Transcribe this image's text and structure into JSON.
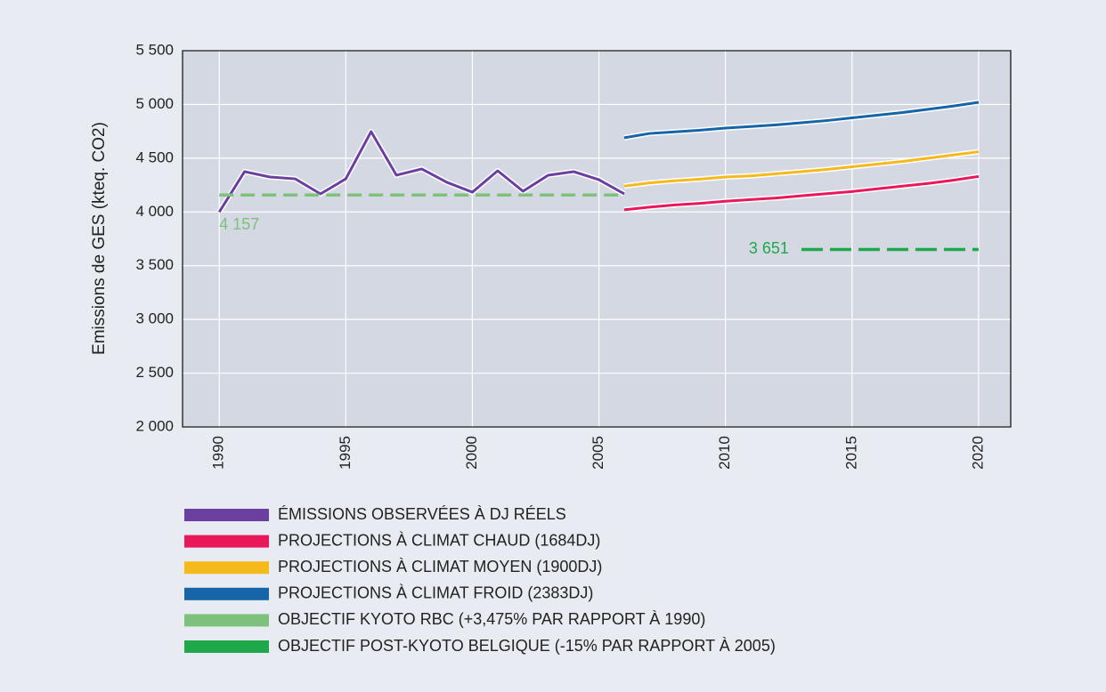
{
  "chart_data": {
    "type": "line",
    "ylabel": "Emissions de GES (kteq. CO2)",
    "xlim": [
      1988.55,
      2021.27
    ],
    "ylim": [
      2000,
      5500
    ],
    "xticks": [
      1990,
      1995,
      2000,
      2005,
      2010,
      2015,
      2020
    ],
    "yticks": [
      {
        "value": 2000,
        "label": "2 000"
      },
      {
        "value": 2500,
        "label": "2 500"
      },
      {
        "value": 3000,
        "label": "3 000"
      },
      {
        "value": 3500,
        "label": "3 500"
      },
      {
        "value": 4000,
        "label": "4 000"
      },
      {
        "value": 4500,
        "label": "4 500"
      },
      {
        "value": 5000,
        "label": "5 000"
      },
      {
        "value": 5500,
        "label": "5 500"
      }
    ],
    "grid": true,
    "series": [
      {
        "name": "ÉMISSIONS OBSERVÉES À DJ RÉELS",
        "color": "#6b3fa0",
        "x": [
          1990,
          1991,
          1992,
          1993,
          1994,
          1995,
          1996,
          1997,
          1998,
          1999,
          2000,
          2001,
          2002,
          2003,
          2004,
          2005,
          2006
        ],
        "values": [
          4000,
          4375,
          4325,
          4308,
          4168,
          4308,
          4747,
          4342,
          4400,
          4275,
          4184,
          4383,
          4193,
          4342,
          4375,
          4300,
          4168
        ]
      },
      {
        "name": "PROJECTIONS À CLIMAT CHAUD (1684DJ)",
        "color": "#e8185a",
        "x": [
          2006,
          2007,
          2008,
          2009,
          2010,
          2011,
          2012,
          2013,
          2014,
          2015,
          2016,
          2017,
          2018,
          2019,
          2020
        ],
        "values": [
          4020,
          4045,
          4065,
          4080,
          4100,
          4115,
          4130,
          4150,
          4170,
          4190,
          4215,
          4240,
          4265,
          4295,
          4330
        ]
      },
      {
        "name": "PROJECTIONS À CLIMAT MOYEN (1900DJ)",
        "color": "#f5b91c",
        "x": [
          2006,
          2007,
          2008,
          2009,
          2010,
          2011,
          2012,
          2013,
          2014,
          2015,
          2016,
          2017,
          2018,
          2019,
          2020
        ],
        "values": [
          4240,
          4270,
          4290,
          4305,
          4325,
          4335,
          4355,
          4375,
          4395,
          4420,
          4445,
          4470,
          4500,
          4530,
          4560
        ]
      },
      {
        "name": "PROJECTIONS À CLIMAT FROID (2383DJ)",
        "color": "#1565a8",
        "x": [
          2006,
          2007,
          2008,
          2009,
          2010,
          2011,
          2012,
          2013,
          2014,
          2015,
          2016,
          2017,
          2018,
          2019,
          2020
        ],
        "values": [
          4690,
          4730,
          4745,
          4760,
          4780,
          4795,
          4810,
          4830,
          4850,
          4875,
          4900,
          4925,
          4955,
          4985,
          5020
        ]
      },
      {
        "name": "OBJECTIF KYOTO RBC (+3,475% PAR RAPPORT À 1990)",
        "color": "#7dc17d",
        "dashed": true,
        "x": [
          1990,
          2006
        ],
        "values": [
          4157,
          4157
        ],
        "value_labels": [
          "4 157",
          null
        ]
      },
      {
        "name": "OBJECTIF POST-KYOTO BELGIQUE (-15% PAR RAPPORT À 2005)",
        "color": "#1ea84a",
        "dashed": true,
        "x": [
          2013,
          2020
        ],
        "values": [
          3651,
          3651
        ],
        "value_labels": [
          "3 651",
          null
        ]
      }
    ]
  }
}
